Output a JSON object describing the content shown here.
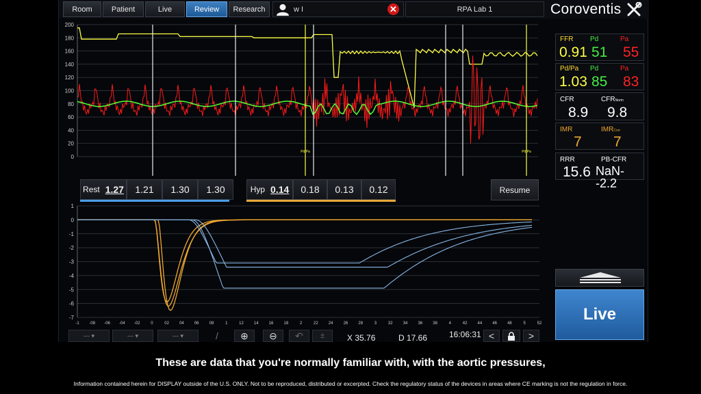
{
  "tabs": [
    {
      "label": "Room",
      "active": false
    },
    {
      "label": "Patient",
      "active": false
    },
    {
      "label": "Live",
      "active": false
    },
    {
      "label": "Review",
      "active": true
    },
    {
      "label": "Research",
      "active": false
    }
  ],
  "user": {
    "name": "w I",
    "icon": "user-icon",
    "clear_icon": "close-icon",
    "clear_symbol": "✕"
  },
  "lab": "RPA Lab 1",
  "brand": "Coroventis",
  "tools_icon": "tools-icon",
  "pressure_plot": {
    "y_ticks": [
      "200",
      "180",
      "160",
      "140",
      "120",
      "100",
      "80",
      "60",
      "40",
      "20",
      "0"
    ],
    "colors": {
      "aortic": "#ffff44",
      "distal": "#ff1a1a",
      "mean": "#55ff33",
      "marker": "#f0f0f0"
    },
    "marker_labels": [
      "Pd/Pa",
      "Pd/Pa"
    ]
  },
  "rest": {
    "label": "Rest",
    "values": [
      "1.27",
      "1.21",
      "1.30",
      "1.30"
    ],
    "color": "#4a9de8"
  },
  "hyp": {
    "label": "Hyp",
    "values": [
      "0.14",
      "0.18",
      "0.13",
      "0.12"
    ],
    "color": "#e8a838"
  },
  "resume_label": "Resume",
  "thermo_plot": {
    "y_ticks": [
      "1",
      "0",
      "-1",
      "-2",
      "-3",
      "-4",
      "-5",
      "-6",
      "-7"
    ],
    "x_ticks": [
      "-1",
      "-08",
      "-06",
      "-04",
      "-02",
      "0",
      "02",
      "04",
      "06",
      "08",
      "1",
      "12",
      "14",
      "16",
      "18",
      "2",
      "22",
      "24",
      "26",
      "28",
      "3",
      "32",
      "34",
      "36",
      "38",
      "4",
      "42",
      "44",
      "46",
      "48",
      "5",
      "52"
    ],
    "colors": {
      "rest": "#8ab8e8",
      "hyp": "#f0a830"
    }
  },
  "metrics": [
    {
      "labels": [
        {
          "t": "FFR",
          "c": "#ffdd33"
        },
        {
          "t": "Pd",
          "c": "#44ee44"
        },
        {
          "t": "Pa",
          "c": "#ff2222"
        }
      ],
      "values": [
        {
          "t": "0.91",
          "c": "#ffff44"
        },
        {
          "t": "51",
          "c": "#44ee44"
        },
        {
          "t": "55",
          "c": "#ff2222"
        }
      ]
    },
    {
      "labels": [
        {
          "t": "Pd/Pa",
          "c": "#ffdd33"
        },
        {
          "t": "Pd",
          "c": "#44ee44"
        },
        {
          "t": "Pa",
          "c": "#ff2222"
        }
      ],
      "values": [
        {
          "t": "1.03",
          "c": "#ffff44"
        },
        {
          "t": "85",
          "c": "#44ee44"
        },
        {
          "t": "83",
          "c": "#ff2222"
        }
      ]
    },
    {
      "labels": [
        {
          "t": "CFR",
          "c": "#ffffff"
        },
        {
          "t": "CFR",
          "c": "#ffffff",
          "sub": "Norm"
        }
      ],
      "values": [
        {
          "t": "8.9",
          "c": "#ffffff"
        },
        {
          "t": "9.8",
          "c": "#ffffff"
        }
      ]
    },
    {
      "labels": [
        {
          "t": "IMR",
          "c": "#f0a830"
        },
        {
          "t": "IMR",
          "c": "#f0a830",
          "sub": "Corr"
        }
      ],
      "values": [
        {
          "t": "7",
          "c": "#f0a830"
        },
        {
          "t": "7",
          "c": "#f0a830"
        }
      ]
    },
    {
      "labels": [
        {
          "t": "RRR",
          "c": "#ffffff"
        },
        {
          "t": "PB-CFR",
          "c": "#ffffff"
        }
      ],
      "values": [
        {
          "t": "15.6",
          "c": "#ffffff"
        },
        {
          "t": "NaN--2.2",
          "c": "#ffffff"
        }
      ]
    }
  ],
  "live_label": "Live",
  "toolbar": {
    "dropdowns": [
      "---",
      "---",
      "---"
    ],
    "icons": [
      "pen-icon",
      "zoom-in-icon",
      "zoom-out-icon",
      "undo-icon",
      "plus-minus-icon",
      "prev-icon",
      "lock-icon",
      "next-icon"
    ],
    "symbols": {
      "zoom_in": "⊕",
      "zoom_out": "⊖",
      "prev": "<",
      "next": ">",
      "lock": "🔒"
    },
    "x_readout": "X 35.76",
    "d_readout": "D 17.66",
    "time": "16:06:31"
  },
  "subtitle": "These are data that you're normally familiar with, with the aortic pressures,",
  "disclaimer": "Information contained herein for DISPLAY outside of the U.S. ONLY. Not to be reproduced, distributed or excerpted. Check the regulatory status of the devices in areas where CE marking  is not the regulation in force."
}
